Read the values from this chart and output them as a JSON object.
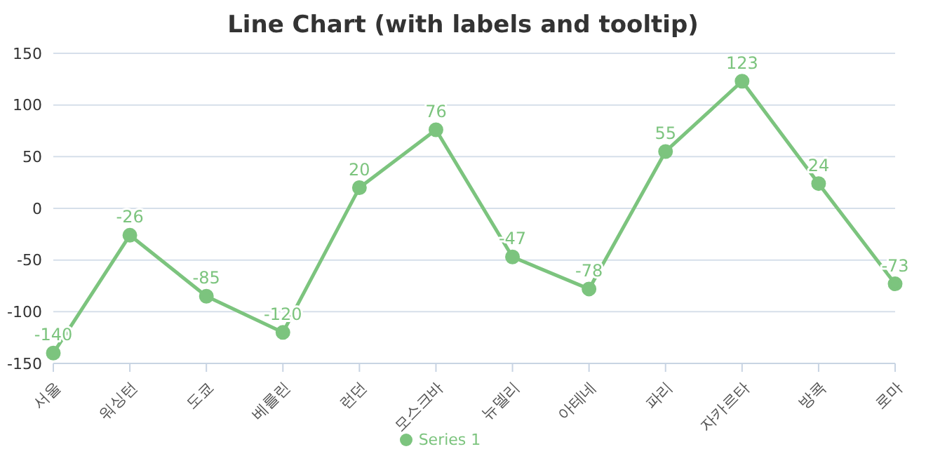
{
  "chart_data": {
    "type": "line",
    "title": "Line Chart (with labels and tooltip)",
    "categories": [
      "서울",
      "워싱턴",
      "도쿄",
      "베를린",
      "런던",
      "모스크바",
      "뉴델리",
      "아테네",
      "파리",
      "자카르타",
      "방콕",
      "로마"
    ],
    "series": [
      {
        "name": "Series 1",
        "color": "#7cc47e",
        "values": [
          -140,
          -26,
          -85,
          -120,
          20,
          76,
          -47,
          -78,
          55,
          123,
          24,
          -73
        ]
      }
    ],
    "ylim": [
      -150,
      150
    ],
    "yticks": [
      -150,
      -100,
      -50,
      0,
      50,
      100,
      150
    ],
    "grid": "y",
    "legend": "bottom",
    "marker": "circle",
    "line_style": "solid",
    "data_labels": true
  }
}
